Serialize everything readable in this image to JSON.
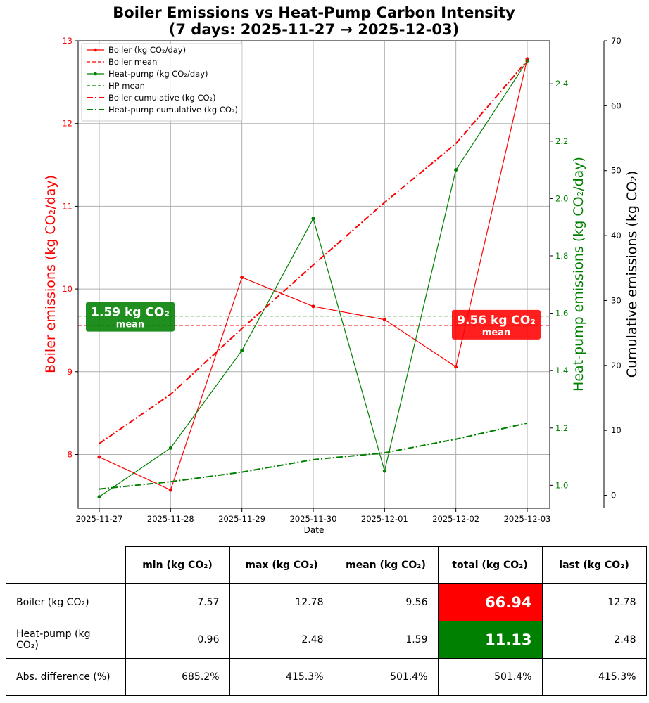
{
  "title_line1": "Boiler Emissions vs Heat-Pump Carbon Intensity",
  "title_line2": "(7 days: 2025-11-27 → 2025-12-03)",
  "colors": {
    "boiler": "#ff0000",
    "heatpump": "#008000",
    "boiler_dark": "#cc0000"
  },
  "chart_data": {
    "type": "line",
    "x": [
      "2025-11-27",
      "2025-11-28",
      "2025-11-29",
      "2025-11-30",
      "2025-12-01",
      "2025-12-02",
      "2025-12-03"
    ],
    "xlabel": "Date",
    "ylabel_left": "Boiler emissions (kg CO₂/day)",
    "ylabel_right": "Heat-pump emissions (kg CO₂/day)",
    "ylabel_right2": "Cumulative emissions (kg CO₂)",
    "ylim_left": [
      7.35,
      13.0
    ],
    "ylim_right": [
      0.92,
      2.55
    ],
    "ylim_right2": [
      -2,
      70
    ],
    "yticks_left": [
      "8",
      "9",
      "10",
      "11",
      "12",
      "13"
    ],
    "yticks_right": [
      "1.0",
      "1.2",
      "1.4",
      "1.6",
      "1.8",
      "2.0",
      "2.2",
      "2.4"
    ],
    "yticks_right2": [
      "0",
      "10",
      "20",
      "30",
      "40",
      "50",
      "60",
      "70"
    ],
    "grid": true,
    "legend_position": "top-left",
    "series": [
      {
        "name": "Boiler (kg CO₂/day)",
        "axis": "left",
        "style": "solid-marker",
        "color": "#ff0000",
        "values": [
          7.97,
          7.57,
          10.14,
          9.79,
          9.63,
          9.06,
          12.78
        ]
      },
      {
        "name": "Boiler mean",
        "axis": "left",
        "style": "dashed",
        "color": "#ff0000",
        "values": [
          9.56,
          9.56,
          9.56,
          9.56,
          9.56,
          9.56,
          9.56
        ]
      },
      {
        "name": "Heat-pump (kg CO₂/day)",
        "axis": "right",
        "style": "solid-marker",
        "color": "#008000",
        "values": [
          0.96,
          1.13,
          1.47,
          1.93,
          1.05,
          2.1,
          2.48
        ]
      },
      {
        "name": "HP mean",
        "axis": "right",
        "style": "dashed",
        "color": "#008000",
        "values": [
          1.59,
          1.59,
          1.59,
          1.59,
          1.59,
          1.59,
          1.59
        ]
      },
      {
        "name": "Boiler cumulative (kg CO₂)",
        "axis": "right2",
        "style": "dashdot",
        "color": "#ff0000",
        "values": [
          7.97,
          15.54,
          25.68,
          35.47,
          45.1,
          54.16,
          66.94
        ]
      },
      {
        "name": "Heat-pump cumulative (kg CO₂)",
        "axis": "right2",
        "style": "dashdot",
        "color": "#008000",
        "values": [
          0.96,
          2.09,
          3.56,
          5.49,
          6.54,
          8.64,
          11.13
        ]
      }
    ],
    "annotations": [
      {
        "text": "1.59 kg CO₂",
        "subtext": "mean",
        "color": "#008000"
      },
      {
        "text": "9.56 kg CO₂",
        "subtext": "mean",
        "color": "#ff0000"
      }
    ]
  },
  "table": {
    "headers": [
      "min (kg CO₂)",
      "max (kg CO₂)",
      "mean (kg CO₂)",
      "total (kg CO₂)",
      "last (kg CO₂)"
    ],
    "rows": [
      {
        "label": "Boiler (kg CO₂)",
        "cells": [
          "7.57",
          "12.78",
          "9.56",
          "66.94",
          "12.78"
        ]
      },
      {
        "label": "Heat-pump (kg CO₂)",
        "cells": [
          "0.96",
          "2.48",
          "1.59",
          "11.13",
          "2.48"
        ]
      },
      {
        "label": "Abs. difference (%)",
        "cells": [
          "685.2%",
          "415.3%",
          "501.4%",
          "501.4%",
          "415.3%"
        ]
      }
    ]
  }
}
